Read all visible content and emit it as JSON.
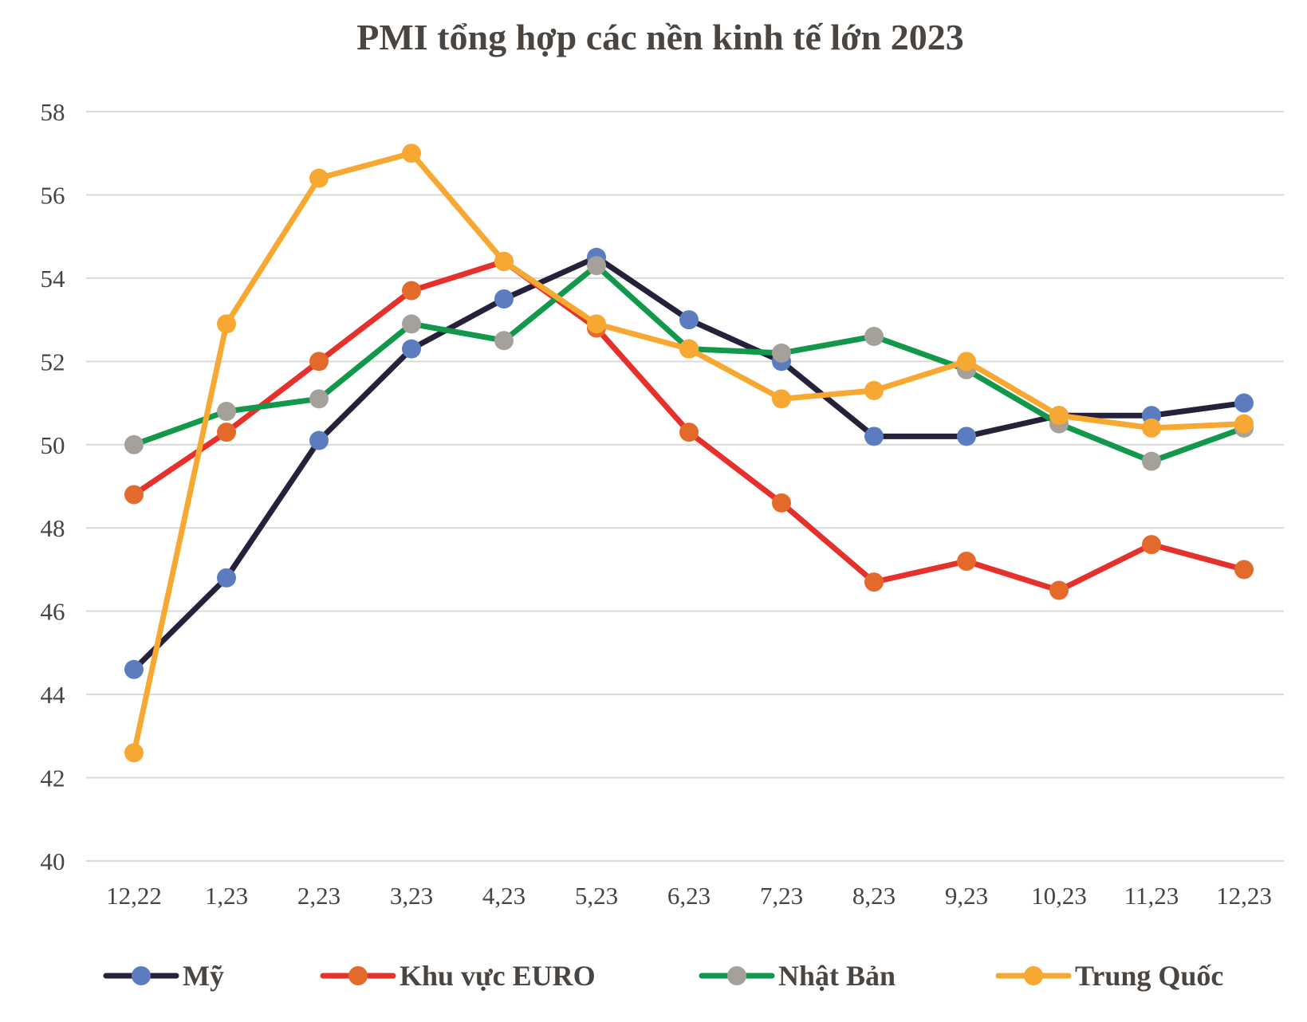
{
  "chart_data": {
    "type": "line",
    "title": "PMI tổng hợp các nền kinh tế lớn 2023",
    "xlabel": "",
    "ylabel": "",
    "categories": [
      "12,22",
      "1,23",
      "2,23",
      "3,23",
      "4,23",
      "5,23",
      "6,23",
      "7,23",
      "8,23",
      "9,23",
      "10,23",
      "11,23",
      "12,23"
    ],
    "ylim": [
      40,
      58
    ],
    "yticks": [
      40,
      42,
      44,
      46,
      48,
      50,
      52,
      54,
      56,
      58
    ],
    "grid": true,
    "legend_position": "bottom",
    "series": [
      {
        "name": "Mỹ",
        "line_color": "#25213b",
        "marker_color": "#5b7dbf",
        "values": [
          44.6,
          46.8,
          50.1,
          52.3,
          53.5,
          54.5,
          53.0,
          52.0,
          50.2,
          50.2,
          50.7,
          50.7,
          51.0
        ]
      },
      {
        "name": "Khu vực EURO",
        "line_color": "#e5302b",
        "marker_color": "#e46a2c",
        "values": [
          48.8,
          50.3,
          52.0,
          53.7,
          54.4,
          52.8,
          50.3,
          48.6,
          46.7,
          47.2,
          46.5,
          47.6,
          47.0
        ]
      },
      {
        "name": "Nhật Bản",
        "line_color": "#11984a",
        "marker_color": "#a6a09a",
        "values": [
          50.0,
          50.8,
          51.1,
          52.9,
          52.5,
          54.3,
          52.3,
          52.2,
          52.6,
          51.8,
          50.5,
          49.6,
          50.4
        ]
      },
      {
        "name": "Trung Quốc",
        "line_color": "#f7a832",
        "marker_color": "#f7a832",
        "values": [
          42.6,
          52.9,
          56.4,
          57.0,
          54.4,
          52.9,
          52.3,
          51.1,
          51.3,
          52.0,
          50.7,
          50.4,
          50.5
        ]
      }
    ]
  }
}
